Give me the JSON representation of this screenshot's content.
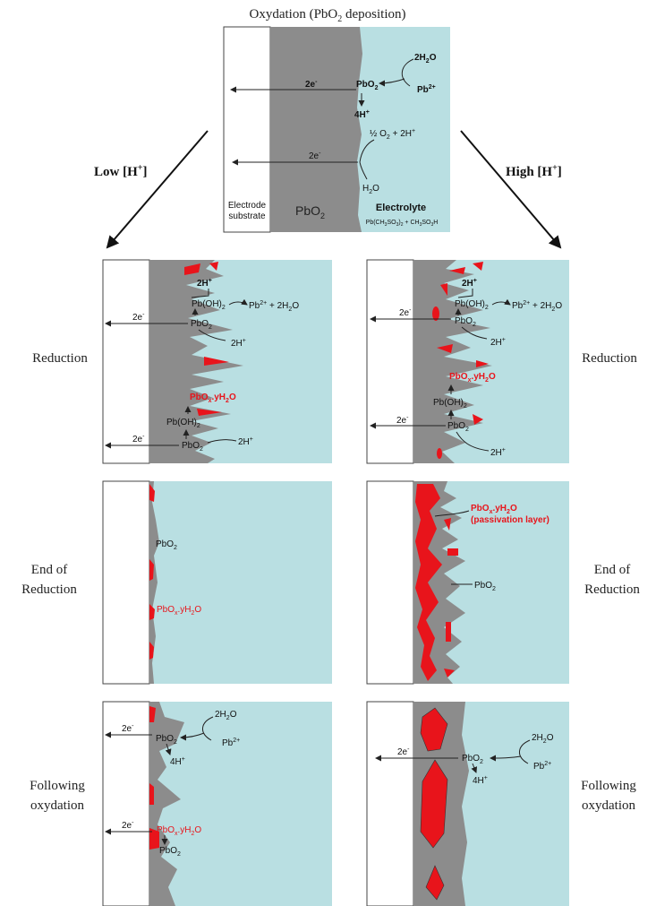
{
  "title": "Oxydation (PbO",
  "title_sub": "2",
  "title_tail": " deposition)",
  "colors": {
    "electrolyte": "#b9dfe2",
    "pbo2": "#8c8c8c",
    "passivation": "#e8141b",
    "substrate": "#ffffff"
  },
  "side_labels": {
    "low_h": "Low [H",
    "high_h": "High [H",
    "h_sup": "+",
    "h_close": "]"
  },
  "row_labels": {
    "reduction": "Reduction",
    "end_1": "End of",
    "end_2": "Reduction",
    "follow_1": "Following",
    "follow_2": "oxydation"
  },
  "top_panel": {
    "substrate_1": "Electrode",
    "substrate_2": "substrate",
    "pbo2": "PbO",
    "pbo2_sub": "2",
    "electrolyte": "Electrolyte",
    "electrolyte_formula": "Pb(CH",
    "ef_s1": "3",
    "ef_m1": "SO",
    "ef_s2": "3",
    "ef_m2": ")",
    "ef_s3": "2",
    "ef_m3": " + CH",
    "ef_s4": "3",
    "ef_m4": "SO",
    "ef_s5": "3",
    "ef_m5": "H",
    "e1": "2e",
    "e_sup": "-",
    "pbo2_node": "PbO",
    "h2o_2": "2H",
    "h2o_2_sub": "2",
    "h2o_o": "O",
    "pb2": "Pb",
    "pb2_sup": "2+",
    "h4": "4H",
    "h_plus": "+",
    "e2": "2e",
    "o2": "½ O",
    "o2_sub": "2",
    "o2_tail": " + 2H",
    "h2o": "H",
    "h2o_sub": "2",
    "h2o_tail": "O"
  },
  "chem": {
    "two_h": "2H",
    "plus": "+",
    "pboh2": "Pb(OH)",
    "sub2": "2",
    "pb2plus": "Pb",
    "pb2sup": "2+",
    "plus_2h2o": " + 2H",
    "o": "O",
    "pbo": "PbO",
    "pbox": "PbO",
    "sub_x": "x",
    "dot_y": ".yH",
    "two_e": "2e",
    "minus": "-",
    "four_h": "4H",
    "two_h2o": "2H",
    "passivation": "(passivation layer)"
  }
}
